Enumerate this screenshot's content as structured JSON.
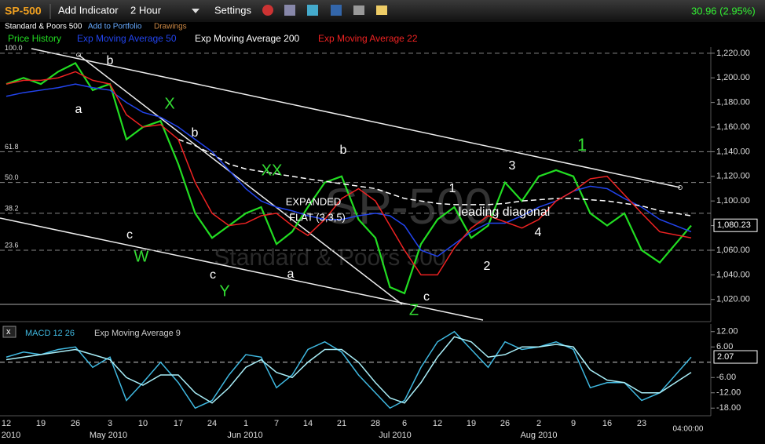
{
  "toolbar": {
    "symbol": "SP-500",
    "add_indicator": "Add Indicator",
    "interval": "2 Hour",
    "settings": "Settings",
    "change": "30.96 (2.95%)",
    "name": "Standard & Poors 500",
    "add_portfolio": "Add to Portfolio",
    "drawings": "Drawings"
  },
  "chart_data": {
    "type": "line",
    "watermark": "SP-500",
    "watermark_name": "Standard & Poors 500",
    "categories": [
      "12",
      null,
      "19",
      null,
      "26",
      null,
      "3",
      null,
      "10",
      null,
      "17",
      null,
      "24",
      null,
      "1",
      null,
      "7",
      null,
      "14",
      null,
      "21",
      null,
      "28",
      null,
      "6",
      null,
      "12",
      null,
      "19",
      null,
      "26",
      null,
      "2",
      null,
      "9",
      null,
      "16",
      null,
      "23",
      null,
      null
    ],
    "period_labels": [
      "2010",
      "May 2010",
      "Jun 2010",
      "Jul 2010",
      "Aug 2010"
    ],
    "time_label": "04:00:00",
    "series": [
      {
        "name": "Price History",
        "color": "#22dd22",
        "values": [
          1195,
          1200,
          1195,
          1205,
          1212,
          1190,
          1195,
          1150,
          1160,
          1165,
          1130,
          1090,
          1070,
          1080,
          1090,
          1095,
          1065,
          1075,
          1095,
          1115,
          1120,
          1085,
          1070,
          1030,
          1025,
          1065,
          1085,
          1095,
          1070,
          1080,
          1115,
          1100,
          1120,
          1125,
          1120,
          1090,
          1080,
          1090,
          1060,
          1050,
          1080
        ]
      },
      {
        "name": "Exp Moving Average 50",
        "color": "#2244ee",
        "values": [
          1185,
          1188,
          1190,
          1192,
          1195,
          1192,
          1190,
          1180,
          1172,
          1168,
          1160,
          1150,
          1140,
          1125,
          1110,
          1100,
          1095,
          1092,
          1088,
          1085,
          1085,
          1088,
          1090,
          1088,
          1080,
          1060,
          1055,
          1065,
          1075,
          1082,
          1082,
          1088,
          1095,
          1100,
          1108,
          1112,
          1110,
          1102,
          1095,
          1085,
          1075
        ]
      },
      {
        "name": "Exp Moving Average 200",
        "color": "#ffffff",
        "dashed": true,
        "values": [
          null,
          null,
          null,
          null,
          null,
          null,
          null,
          null,
          null,
          null,
          1150,
          1145,
          1138,
          1130,
          1126,
          1124,
          1122,
          1120,
          1118,
          1116,
          1114,
          1112,
          1110,
          1106,
          1102,
          1100,
          1098,
          1097,
          1097,
          1097,
          1098,
          1100,
          1101,
          1102,
          1102,
          1101,
          1100,
          1098,
          1096,
          1092,
          1088
        ]
      },
      {
        "name": "Exp Moving Average 22",
        "color": "#ee2222",
        "values": [
          1195,
          1198,
          1198,
          1200,
          1205,
          1198,
          1195,
          1170,
          1160,
          1162,
          1150,
          1115,
          1090,
          1080,
          1082,
          1088,
          1090,
          1080,
          1072,
          1085,
          1102,
          1110,
          1100,
          1080,
          1060,
          1040,
          1040,
          1062,
          1078,
          1088,
          1083,
          1078,
          1085,
          1100,
          1108,
          1118,
          1120,
          1105,
          1090,
          1075,
          1070
        ]
      },
      {
        "name": "MACD 12 26",
        "color": "#3fb8e0",
        "axis": "y2",
        "values": [
          2,
          4,
          3,
          5,
          6,
          -2,
          2,
          -15,
          -8,
          0,
          -8,
          -18,
          -15,
          -5,
          3,
          2,
          -10,
          -5,
          5,
          8,
          4,
          -5,
          -12,
          -18,
          -15,
          -2,
          8,
          12,
          5,
          -2,
          8,
          5,
          6,
          8,
          5,
          -10,
          -8,
          -8,
          -15,
          -12,
          2
        ]
      },
      {
        "name": "Exp Moving Average 9",
        "color": "#a8eef8",
        "axis": "y2",
        "values": [
          1,
          2,
          3,
          4,
          5,
          3,
          1,
          -6,
          -9,
          -5,
          -5,
          -12,
          -16,
          -10,
          -2,
          1,
          -4,
          -6,
          0,
          5,
          5,
          0,
          -8,
          -14,
          -16,
          -8,
          2,
          10,
          8,
          2,
          3,
          6,
          6,
          7,
          6,
          -3,
          -7,
          -8,
          -12,
          -12,
          -4
        ]
      }
    ],
    "ylim": [
      1002,
      1225
    ],
    "yticks": [
      {
        "value": 1020,
        "label": "1,020.00"
      },
      {
        "value": 1040,
        "label": "1,040.00"
      },
      {
        "value": 1060,
        "label": "1,060.00"
      },
      {
        "value": 1080,
        "label": "1,080.00"
      },
      {
        "value": 1100,
        "label": "1,100.00"
      },
      {
        "value": 1120,
        "label": "1,120.00"
      },
      {
        "value": 1140,
        "label": "1,140.00"
      },
      {
        "value": 1160,
        "label": "1,160.00"
      },
      {
        "value": 1180,
        "label": "1,180.00"
      },
      {
        "value": 1200,
        "label": "1,200.00"
      },
      {
        "value": 1220,
        "label": "1,220.00"
      }
    ],
    "y2lim": [
      -21,
      15
    ],
    "y2ticks": [
      {
        "value": 12,
        "label": "12.00"
      },
      {
        "value": 6,
        "label": "6.00"
      },
      {
        "value": -6,
        "label": "-6.00"
      },
      {
        "value": -12,
        "label": "-12.00"
      },
      {
        "value": -18,
        "label": "-18.00"
      }
    ],
    "fib_levels": [
      {
        "value": 1220,
        "label": "100.0"
      },
      {
        "value": 1140,
        "label": "61.8"
      },
      {
        "value": 1115,
        "label": "50.0"
      },
      {
        "value": 1090,
        "label": "38.2"
      },
      {
        "value": 1060,
        "label": "23.6"
      }
    ],
    "last_value": {
      "value": 1080.23,
      "label": "1,080.23"
    },
    "last_value2": {
      "value": 2.07,
      "label": "2.07"
    },
    "annotations": [
      {
        "text": "a",
        "color": "#ffffff"
      },
      {
        "text": "b",
        "color": "#ffffff"
      },
      {
        "text": "X",
        "color": "#33dd33"
      },
      {
        "text": "c",
        "color": "#ffffff"
      },
      {
        "text": "W",
        "color": "#33dd33"
      },
      {
        "text": "b",
        "color": "#ffffff"
      },
      {
        "text": "XX",
        "color": "#33dd33"
      },
      {
        "text": "EXPANDED",
        "color": "#ffffff"
      },
      {
        "text": "FLAT (3,3,5)",
        "color": "#ffffff"
      },
      {
        "text": "b",
        "color": "#ffffff"
      },
      {
        "text": "c",
        "color": "#ffffff"
      },
      {
        "text": "Y",
        "color": "#33dd33"
      },
      {
        "text": "a",
        "color": "#ffffff"
      },
      {
        "text": "Z",
        "color": "#33dd33"
      },
      {
        "text": "c",
        "color": "#ffffff"
      },
      {
        "text": "1",
        "color": "#ffffff"
      },
      {
        "text": "leading diagonal",
        "color": "#ffffff"
      },
      {
        "text": "2",
        "color": "#ffffff"
      },
      {
        "text": "3",
        "color": "#ffffff"
      },
      {
        "text": "4",
        "color": "#ffffff"
      },
      {
        "text": "1",
        "color": "#33dd33"
      }
    ]
  }
}
